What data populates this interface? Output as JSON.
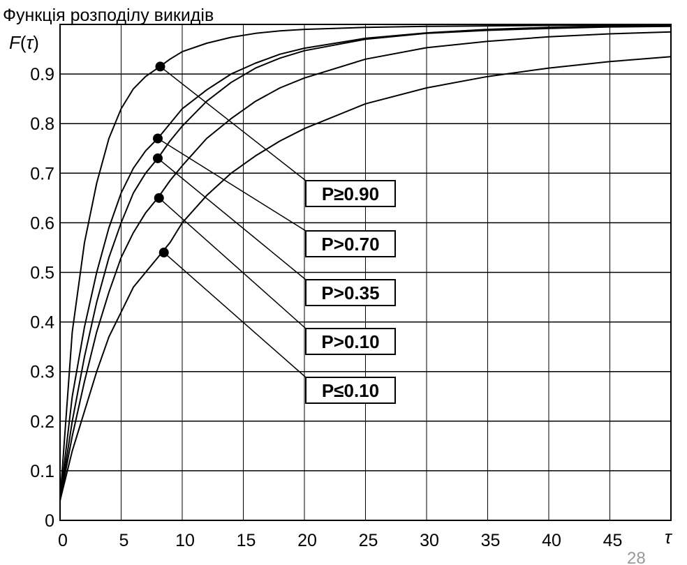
{
  "page_number": "28",
  "chart_data": {
    "type": "line",
    "title": "Функція розподілу викидів",
    "ylabel": "F(τ)",
    "ylabel_parts": [
      "F",
      "(",
      "τ",
      ")"
    ],
    "xlabel": "τ",
    "xlim": [
      0,
      50
    ],
    "ylim": [
      0,
      1
    ],
    "x_ticks": [
      0,
      5,
      10,
      15,
      20,
      25,
      30,
      35,
      40,
      45
    ],
    "x_tick_labels": [
      "0",
      "5",
      "10",
      "15",
      "20",
      "25",
      "30",
      "35",
      "40",
      "45"
    ],
    "y_ticks": [
      0,
      0.1,
      0.2,
      0.3,
      0.4,
      0.5,
      0.6,
      0.7,
      0.8,
      0.9
    ],
    "y_tick_labels": [
      "0",
      "0.1",
      "0.2",
      "0.3",
      "0.4",
      "0.5",
      "0.6",
      "0.7",
      "0.8",
      "0.9"
    ],
    "grid": true,
    "series": [
      {
        "name": "P≥0.90",
        "marker": {
          "x": 8.2,
          "y": 0.915
        },
        "label_box": "P≥0.90",
        "x": [
          0,
          1,
          2,
          3,
          4,
          5,
          6,
          7,
          8,
          9,
          10,
          12,
          14,
          16,
          18,
          20,
          25,
          30,
          35,
          40,
          45,
          50
        ],
        "y": [
          0.04,
          0.38,
          0.56,
          0.68,
          0.77,
          0.83,
          0.87,
          0.895,
          0.912,
          0.93,
          0.945,
          0.962,
          0.974,
          0.982,
          0.987,
          0.99,
          0.994,
          0.996,
          0.997,
          0.998,
          0.998,
          0.998
        ]
      },
      {
        "name": "P>0.70",
        "marker": {
          "x": 8.0,
          "y": 0.77
        },
        "label_box": "P>0.70",
        "x": [
          0,
          1,
          2,
          3,
          4,
          5,
          6,
          7,
          8,
          9,
          10,
          12,
          14,
          16,
          18,
          20,
          25,
          30,
          35,
          40,
          45,
          50
        ],
        "y": [
          0.04,
          0.25,
          0.39,
          0.5,
          0.59,
          0.66,
          0.71,
          0.745,
          0.77,
          0.8,
          0.83,
          0.868,
          0.9,
          0.922,
          0.94,
          0.952,
          0.972,
          0.983,
          0.99,
          0.994,
          0.996,
          0.997
        ]
      },
      {
        "name": "P>0.35",
        "marker": {
          "x": 8.0,
          "y": 0.73
        },
        "label_box": "P>0.35",
        "x": [
          0,
          1,
          2,
          3,
          4,
          5,
          6,
          7,
          8,
          9,
          10,
          12,
          14,
          16,
          18,
          20,
          25,
          30,
          35,
          40,
          45,
          50
        ],
        "y": [
          0.04,
          0.2,
          0.33,
          0.44,
          0.53,
          0.6,
          0.66,
          0.7,
          0.73,
          0.765,
          0.795,
          0.845,
          0.883,
          0.912,
          0.932,
          0.947,
          0.97,
          0.982,
          0.988,
          0.992,
          0.995,
          0.996
        ]
      },
      {
        "name": "P>0.10",
        "marker": {
          "x": 8.1,
          "y": 0.65
        },
        "label_box": "P>0.10",
        "x": [
          0,
          1,
          2,
          3,
          4,
          5,
          6,
          7,
          8,
          9,
          10,
          12,
          14,
          16,
          18,
          20,
          25,
          30,
          35,
          40,
          45,
          50
        ],
        "y": [
          0.04,
          0.17,
          0.28,
          0.38,
          0.46,
          0.53,
          0.58,
          0.62,
          0.65,
          0.685,
          0.715,
          0.77,
          0.81,
          0.845,
          0.872,
          0.892,
          0.93,
          0.953,
          0.966,
          0.975,
          0.981,
          0.985
        ]
      },
      {
        "name": "P≤0.10",
        "marker": {
          "x": 8.5,
          "y": 0.54
        },
        "label_box": "P≤0.10",
        "x": [
          0,
          1,
          2,
          3,
          4,
          5,
          6,
          7,
          8,
          9,
          10,
          12,
          14,
          16,
          18,
          20,
          25,
          30,
          35,
          40,
          45,
          50
        ],
        "y": [
          0.04,
          0.14,
          0.22,
          0.3,
          0.37,
          0.42,
          0.47,
          0.5,
          0.53,
          0.56,
          0.6,
          0.655,
          0.7,
          0.735,
          0.765,
          0.79,
          0.84,
          0.872,
          0.895,
          0.912,
          0.925,
          0.935
        ]
      }
    ]
  }
}
